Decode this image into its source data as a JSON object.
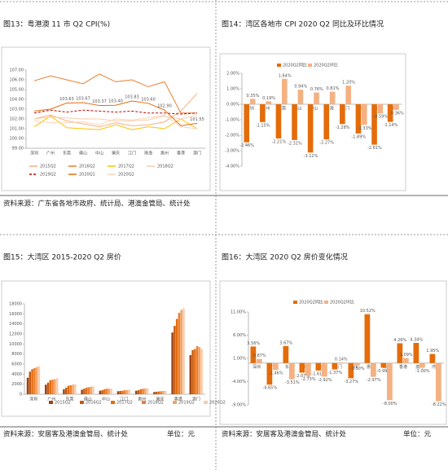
{
  "chart_data": [
    {
      "type": "line",
      "title": "图13：粤港澳 11 市 Q2 CPI(%)",
      "legend": "bottom",
      "grid": false,
      "categories": [
        "深圳",
        "广州",
        "东莞",
        "佛山",
        "中山",
        "肇庆",
        "江门",
        "珠海",
        "惠州",
        "香港",
        "澳门"
      ],
      "ylim": [
        99,
        107
      ],
      "yticks": [
        {
          "value": 99,
          "label": "99.00"
        },
        {
          "value": 100,
          "label": "100.00"
        },
        {
          "value": 101,
          "label": "101.00"
        },
        {
          "value": 102,
          "label": "102.00"
        },
        {
          "value": 103,
          "label": "103.00"
        },
        {
          "value": 104,
          "label": "104.00"
        },
        {
          "value": 105,
          "label": "105.00"
        },
        {
          "value": 106,
          "label": "106.00"
        },
        {
          "value": 107,
          "label": "107.00"
        }
      ],
      "series": [
        {
          "name": "2015Q2",
          "color": "#f4b183",
          "values": [
            102.0,
            102.4,
            101.8,
            101.5,
            101.2,
            101.6,
            101.3,
            101.4,
            101.7,
            102.8,
            104.6
          ]
        },
        {
          "name": "2016Q2",
          "color": "#ed7d31",
          "values": [
            105.9,
            106.4,
            106.0,
            105.6,
            106.6,
            105.8,
            106.0,
            105.3,
            105.8,
            102.6,
            102.6
          ]
        },
        {
          "name": "2017Q2",
          "color": "#ffc000",
          "values": [
            101.2,
            102.3,
            101.1,
            101.0,
            100.9,
            101.4,
            100.9,
            101.2,
            101.0,
            102.0,
            101.0
          ]
        },
        {
          "name": "2018Q2",
          "color": "#f8cbad",
          "values": [
            102.0,
            102.2,
            102.1,
            102.0,
            102.0,
            101.8,
            101.8,
            101.9,
            102.3,
            102.0,
            102.4
          ]
        },
        {
          "name": "2019Q2",
          "color": "#c00000",
          "dashed": true,
          "values": [
            102.6,
            102.9,
            102.7,
            102.9,
            102.8,
            102.7,
            102.8,
            102.6,
            102.6,
            102.5,
            102.6
          ]
        },
        {
          "name": "2020Q1",
          "color": "#e46c0a",
          "values": [
            102.8,
            103.0,
            103.63,
            103.67,
            103.37,
            103.4,
            103.83,
            103.6,
            102.9,
            101.3,
            101.55
          ],
          "value_labels": [
            null,
            null,
            "103.63",
            "103.67",
            "103.37",
            "103.40",
            "103.83",
            "103.60",
            "102.90",
            null,
            "101.55"
          ]
        },
        {
          "name": "2020Q2",
          "color": "#fbd5b5",
          "values": [
            101.8,
            101.6,
            101.6,
            101.7,
            101.4,
            102.0,
            101.9,
            102.1,
            102.4,
            101.2,
            101.0
          ]
        }
      ]
    },
    {
      "type": "bar",
      "title": "图14：湾区各地市 CPI 2020 Q2 同比及环比情况",
      "legend": "top",
      "categories": [
        "深圳",
        "广州",
        "东莞",
        "佛山",
        "中山",
        "珠海",
        "江门",
        "肇庆",
        "惠州",
        "澳门"
      ],
      "ylim": [
        -4,
        2
      ],
      "yticks": [
        {
          "value": 2,
          "label": "2.00%"
        },
        {
          "value": 1,
          "label": "1.00%"
        },
        {
          "value": 0,
          "label": "0.00%"
        },
        {
          "value": -1,
          "label": "-1.00%"
        },
        {
          "value": -2,
          "label": "-2.00%"
        },
        {
          "value": -3,
          "label": "-3.00%"
        },
        {
          "value": -4,
          "label": "-4.00%"
        }
      ],
      "series": [
        {
          "name": "2020Q2同比",
          "color": "#e46c0a",
          "values": [
            -2.46,
            -1.15,
            -2.21,
            -2.31,
            -3.12,
            -2.27,
            -1.28,
            -1.89,
            -2.61,
            -1.14
          ],
          "value_labels": [
            "-2.46%",
            "-1.15%",
            "-2.21%",
            "-2.31%",
            "-3.12%",
            "-2.27%",
            "-1.28%",
            "-1.89%",
            "-2.61%",
            "-1.14%"
          ]
        },
        {
          "name": "2020Q2环比",
          "color": "#f4b183",
          "values": [
            0.35,
            0.19,
            1.64,
            0.94,
            0.76,
            0.81,
            1.2,
            -1.33,
            -0.59,
            -0.36
          ],
          "value_labels": [
            "0.35%",
            "0.19%",
            "1.64%",
            "0.94%",
            "0.76%",
            "0.81%",
            "1.20%",
            "-1.33%",
            "-0.59%",
            "-0.36%"
          ]
        }
      ]
    },
    {
      "type": "bar",
      "title": "图15：大湾区 2015-2020 Q2 房价",
      "legend": "bottom",
      "categories": [
        "深圳",
        "广州",
        "东莞",
        "佛山",
        "中山",
        "江门",
        "惠州",
        "肇庆",
        "香港",
        "澳门"
      ],
      "ylim": [
        0,
        18000
      ],
      "yticks": [
        0,
        2000,
        4000,
        6000,
        8000,
        10000,
        12000,
        14000,
        16000,
        18000
      ],
      "series": [
        {
          "name": "2015Q2",
          "color": "#a0420f",
          "values": [
            3300,
            1900,
            1000,
            900,
            700,
            600,
            700,
            450,
            12300,
            7800
          ]
        },
        {
          "name": "2016Q2",
          "color": "#c55a11",
          "values": [
            4500,
            2300,
            1300,
            1100,
            800,
            650,
            800,
            500,
            13600,
            8800
          ]
        },
        {
          "name": "2017Q2",
          "color": "#e46c0a",
          "values": [
            5000,
            2800,
            1700,
            1300,
            1000,
            700,
            1000,
            550,
            15000,
            9000
          ]
        },
        {
          "name": "2018Q2",
          "color": "#ed7d31",
          "values": [
            5200,
            2900,
            1800,
            1400,
            1100,
            800,
            1100,
            600,
            16200,
            9600
          ]
        },
        {
          "name": "2019Q2",
          "color": "#f4a460",
          "values": [
            5400,
            3000,
            1900,
            1500,
            1100,
            850,
            1150,
            650,
            16800,
            9400
          ]
        },
        {
          "name": "2020Q2",
          "color": "#f8cbad",
          "values": [
            5600,
            3200,
            2000,
            1600,
            1100,
            900,
            1200,
            700,
            17100,
            9000
          ]
        }
      ]
    },
    {
      "type": "bar",
      "title": "图16：大湾区 2020 Q2 房价变化情况",
      "legend": "top",
      "categories": [
        "深圳",
        "广州",
        "东莞",
        "佛山",
        "中山",
        "江门",
        "肇庆",
        "惠州",
        "珠海",
        "香港",
        "澳门",
        "湾区"
      ],
      "ylim": [
        -9,
        11
      ],
      "yticks": [
        {
          "value": 11,
          "label": "11.00%"
        },
        {
          "value": 6,
          "label": "6.00%"
        },
        {
          "value": 1,
          "label": "1.00%"
        },
        {
          "value": -4,
          "label": "-4.00%"
        },
        {
          "value": -9,
          "label": "-9.00%"
        }
      ],
      "series": [
        {
          "name": "2020Q2同比",
          "color": "#e46c0a",
          "values": [
            3.56,
            -4.65,
            3.67,
            -2.07,
            -1.61,
            -1.37,
            -3.27,
            10.52,
            -0.99,
            4.26,
            4.34,
            1.95
          ],
          "value_labels": [
            "3.56%",
            "-4.65%",
            "3.67%",
            "-2.07%",
            "-1.61%",
            "-1.37%",
            "-3.27%",
            "10.52%",
            "-0.99%",
            "4.26%",
            "4.34%",
            "1.95%"
          ]
        },
        {
          "name": "2020Q2环比",
          "color": "#f4b183",
          "values": [
            0.87,
            -1.46,
            -3.51,
            -2.73,
            -2.92,
            0.14,
            -0.5,
            -2.97,
            -8.0,
            1.09,
            -1.0,
            -8.22
          ],
          "value_labels": [
            "0.87%",
            "-1.46%",
            "-3.51%",
            "-2.73%",
            "-2.92%",
            "0.14%",
            "-0.50%",
            "-2.97%",
            "-8.00%",
            "1.09%",
            "-1.00%",
            "-8.22%"
          ]
        }
      ]
    }
  ],
  "notes": {
    "source_top": "资料来源：广东省各地市政府、统计局、港澳金管局、统计处",
    "source_bottom_left": "资料来源：安居客及港澳金管局、统计处",
    "unit_bottom_left": "单位：元",
    "source_bottom_right": "资料来源：安居客及港澳金管局、统计处",
    "unit_bottom_right": "单位：元"
  }
}
